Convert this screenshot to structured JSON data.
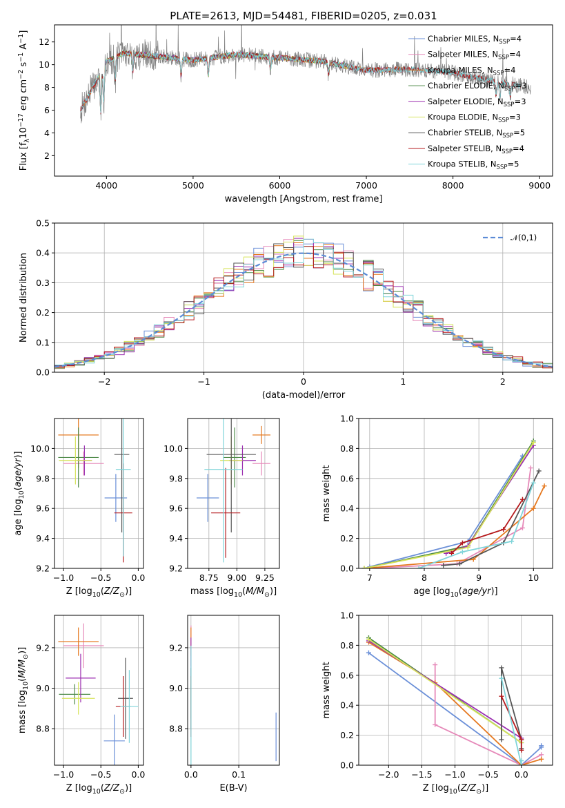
{
  "figure": {
    "title": "PLATE=2613, MJD=54481, FIBERID=0205, z=0.031",
    "colors": {
      "Chabrier MILES": "#6a8fd8",
      "Salpeter MILES": "#e689b9",
      "Kroupa MILES": "#e5781f",
      "Chabrier ELODIE": "#4d8a47",
      "Salpeter ELODIE": "#9b2fb0",
      "Kroupa ELODIE": "#d6e35a",
      "Chabrier STELIB": "#555555",
      "Salpeter STELIB": "#b5191c",
      "Kroupa STELIB": "#7fd4d9",
      "data": "#808080"
    }
  },
  "chart_data": [
    {
      "id": "spectrum",
      "type": "line",
      "xlabel": "wavelength [Angstrom, rest frame]",
      "ylabel": "Flux [f_λ10^-17 erg cm^-2 s^-1 A^-1]",
      "xlim": [
        3400,
        9150
      ],
      "ylim": [
        0.2,
        13.5
      ],
      "xticks": [
        4000,
        5000,
        6000,
        7000,
        8000,
        9000
      ],
      "yticks": [
        2,
        4,
        6,
        8,
        10,
        12
      ],
      "legend_position": "upper-right",
      "legend": [
        {
          "label": "Chabrier MILES, N",
          "sub": "SSP",
          "eq": "=4"
        },
        {
          "label": "Salpeter MILES, N",
          "sub": "SSP",
          "eq": "=4"
        },
        {
          "label": "Kroupa MILES, N",
          "sub": "SSP",
          "eq": "=4"
        },
        {
          "label": "Chabrier ELODIE, N",
          "sub": "SSP",
          "eq": "=3"
        },
        {
          "label": "Salpeter ELODIE, N",
          "sub": "SSP",
          "eq": "=3"
        },
        {
          "label": "Kroupa ELODIE, N",
          "sub": "SSP",
          "eq": "=3"
        },
        {
          "label": "Chabrier STELIB, N",
          "sub": "SSP",
          "eq": "=5"
        },
        {
          "label": "Salpeter STELIB, N",
          "sub": "SSP",
          "eq": "=4"
        },
        {
          "label": "Kroupa STELIB, N",
          "sub": "SSP",
          "eq": "=5"
        }
      ],
      "data_range": [
        3700,
        8900
      ],
      "model_ranges": {
        "MILES": [
          3700,
          7430
        ],
        "ELODIE": [
          3900,
          6800
        ],
        "STELIB": [
          3700,
          8780
        ]
      },
      "continuum": [
        [
          3700,
          6.0
        ],
        [
          3900,
          8.8
        ],
        [
          4000,
          10.3
        ],
        [
          4200,
          11.0
        ],
        [
          4500,
          10.8
        ],
        [
          5000,
          10.4
        ],
        [
          5500,
          10.9
        ],
        [
          6000,
          10.6
        ],
        [
          6500,
          10.3
        ],
        [
          7000,
          9.5
        ],
        [
          7500,
          9.6
        ],
        [
          8000,
          9.3
        ],
        [
          8500,
          8.5
        ],
        [
          8900,
          8.0
        ]
      ],
      "absorption_lines": [
        [
          3934,
          3.5
        ],
        [
          3969,
          3.0
        ],
        [
          4102,
          2.0
        ],
        [
          4304,
          1.5
        ],
        [
          4861,
          1.5
        ],
        [
          5175,
          1.5
        ],
        [
          5893,
          1.0
        ],
        [
          6563,
          1.0
        ],
        [
          8498,
          1.2
        ],
        [
          8542,
          1.5
        ],
        [
          8662,
          1.2
        ]
      ]
    },
    {
      "id": "residuals",
      "type": "histogram",
      "xlabel": "(data-model)/error",
      "ylabel": "Normed distribution",
      "xlim": [
        -2.5,
        2.5
      ],
      "ylim": [
        0,
        0.5
      ],
      "xticks": [
        -2,
        -1,
        0,
        1,
        2
      ],
      "yticks": [
        0.0,
        0.1,
        0.2,
        0.3,
        0.4,
        0.5
      ],
      "legend": "𝒩(0,1)",
      "legend_position": "upper-right",
      "bin_width": 0.1,
      "reference_curve": "normal(0,1)"
    },
    {
      "id": "age_vs_Z",
      "type": "errorbar",
      "xlabel": "Z [log10(Z/Z⊙)]",
      "ylabel": "age [log10(age/yr)]",
      "xlim": [
        -1.12,
        0.07
      ],
      "ylim": [
        9.2,
        10.2
      ],
      "xticks": [
        -1.0,
        -0.5,
        0.0
      ],
      "yticks": [
        9.2,
        9.4,
        9.6,
        9.8,
        10.0
      ],
      "points": [
        {
          "model": "Chabrier MILES",
          "x": -0.3,
          "xerr": 0.15,
          "y": 9.67,
          "yerr": 0.16
        },
        {
          "model": "Salpeter MILES",
          "x": -0.73,
          "xerr": 0.27,
          "y": 9.9,
          "yerr": 0.08
        },
        {
          "model": "Kroupa MILES",
          "x": -0.8,
          "xerr": 0.27,
          "y": 10.09,
          "yerr": 0.22
        },
        {
          "model": "Chabrier ELODIE",
          "x": -0.8,
          "xerr": 0.27,
          "y": 9.94,
          "yerr": 0.2
        },
        {
          "model": "Salpeter ELODIE",
          "x": -0.72,
          "xerr": 0.1,
          "y": 9.92,
          "yerr": 0.1
        },
        {
          "model": "Kroupa ELODIE",
          "x": -0.84,
          "xerr": 0.22,
          "y": 9.92,
          "yerr": 0.16
        },
        {
          "model": "Chabrier STELIB",
          "x": -0.22,
          "xerr": 0.1,
          "y": 9.96,
          "yerr": 0.52
        },
        {
          "model": "Salpeter STELIB",
          "x": -0.2,
          "xerr": 0.12,
          "y": 9.57,
          "yerr": 0.33
        },
        {
          "model": "Kroupa STELIB",
          "x": -0.2,
          "xerr": 0.1,
          "y": 9.86,
          "yerr": 0.58
        }
      ]
    },
    {
      "id": "age_vs_mass",
      "type": "errorbar",
      "xlabel": "mass [log10(M/M⊙)]",
      "ylabel": "",
      "xlim": [
        8.56,
        9.38
      ],
      "ylim": [
        9.2,
        10.2
      ],
      "xticks": [
        8.75,
        9.0,
        9.25
      ],
      "yticks": [
        9.2,
        9.4,
        9.6,
        9.8,
        10.0
      ],
      "points": [
        {
          "model": "Chabrier MILES",
          "x": 8.74,
          "xerr": 0.1,
          "y": 9.67,
          "yerr": 0.16
        },
        {
          "model": "Salpeter MILES",
          "x": 9.22,
          "xerr": 0.08,
          "y": 9.9,
          "yerr": 0.08
        },
        {
          "model": "Kroupa MILES",
          "x": 9.22,
          "xerr": 0.08,
          "y": 10.09,
          "yerr": 0.06
        },
        {
          "model": "Chabrier ELODIE",
          "x": 8.98,
          "xerr": 0.1,
          "y": 9.94,
          "yerr": 0.2
        },
        {
          "model": "Salpeter ELODIE",
          "x": 9.05,
          "xerr": 0.12,
          "y": 9.92,
          "yerr": 0.1
        },
        {
          "model": "Kroupa ELODIE",
          "x": 8.95,
          "xerr": 0.1,
          "y": 9.92,
          "yerr": 0.16
        },
        {
          "model": "Chabrier STELIB",
          "x": 8.95,
          "xerr": 0.22,
          "y": 9.96,
          "yerr": 0.52
        },
        {
          "model": "Salpeter STELIB",
          "x": 8.9,
          "xerr": 0.13,
          "y": 9.57,
          "yerr": 0.3
        },
        {
          "model": "Kroupa STELIB",
          "x": 8.88,
          "xerr": 0.17,
          "y": 9.86,
          "yerr": 0.62
        }
      ]
    },
    {
      "id": "mass_weight_vs_age",
      "type": "line",
      "xlabel": "age [log10(age/yr)]",
      "ylabel": "mass weight",
      "xlim": [
        6.8,
        10.35
      ],
      "ylim": [
        0,
        1.0
      ],
      "xticks": [
        7,
        8,
        9,
        10
      ],
      "yticks": [
        0.0,
        0.2,
        0.4,
        0.6,
        0.8,
        1.0
      ],
      "series": [
        {
          "model": "Chabrier MILES",
          "x": [
            7.0,
            8.8,
            9.8
          ],
          "y": [
            0.01,
            0.18,
            0.75
          ]
        },
        {
          "model": "Salpeter MILES",
          "x": [
            7.0,
            8.6,
            9.8,
            9.95
          ],
          "y": [
            0.0,
            0.03,
            0.27,
            0.67
          ]
        },
        {
          "model": "Kroupa MILES",
          "x": [
            6.9,
            8.9,
            10.0,
            10.2
          ],
          "y": [
            0.0,
            0.06,
            0.4,
            0.55
          ]
        },
        {
          "model": "Chabrier ELODIE",
          "x": [
            6.9,
            8.8,
            10.0
          ],
          "y": [
            0.0,
            0.15,
            0.85
          ]
        },
        {
          "model": "Salpeter ELODIE",
          "x": [
            8.4,
            8.8,
            10.0
          ],
          "y": [
            0.1,
            0.15,
            0.82
          ]
        },
        {
          "model": "Kroupa ELODIE",
          "x": [
            6.9,
            8.8,
            10.0
          ],
          "y": [
            0.0,
            0.14,
            0.84
          ]
        },
        {
          "model": "Chabrier STELIB",
          "x": [
            8.35,
            8.65,
            9.45,
            10.1
          ],
          "y": [
            0.02,
            0.03,
            0.17,
            0.65
          ]
        },
        {
          "model": "Salpeter STELIB",
          "x": [
            8.5,
            8.7,
            9.45,
            9.8
          ],
          "y": [
            0.1,
            0.17,
            0.26,
            0.46
          ]
        },
        {
          "model": "Kroupa STELIB",
          "x": [
            7.9,
            8.7,
            9.6,
            10.0
          ],
          "y": [
            0.0,
            0.11,
            0.18,
            0.57
          ]
        }
      ]
    },
    {
      "id": "mass_vs_Z",
      "type": "errorbar",
      "xlabel": "Z [log10(Z/Z⊙)]",
      "ylabel": "mass [log10(M/M⊙)]",
      "xlim": [
        -1.12,
        0.07
      ],
      "ylim": [
        8.62,
        9.36
      ],
      "xticks": [
        -1.0,
        -0.5,
        0.0
      ],
      "yticks": [
        8.8,
        9.0,
        9.2
      ],
      "points": [
        {
          "model": "Chabrier MILES",
          "x": -0.32,
          "xerr": 0.14,
          "y": 8.74,
          "yerr": 0.13
        },
        {
          "model": "Salpeter MILES",
          "x": -0.73,
          "xerr": 0.27,
          "y": 9.21,
          "yerr": 0.11
        },
        {
          "model": "Kroupa MILES",
          "x": -0.8,
          "xerr": 0.27,
          "y": 9.23,
          "yerr": 0.07
        },
        {
          "model": "Chabrier ELODIE",
          "x": -0.85,
          "xerr": 0.21,
          "y": 8.97,
          "yerr": 0.05
        },
        {
          "model": "Salpeter ELODIE",
          "x": -0.77,
          "xerr": 0.2,
          "y": 9.05,
          "yerr": 0.12
        },
        {
          "model": "Kroupa ELODIE",
          "x": -0.8,
          "xerr": 0.22,
          "y": 8.95,
          "yerr": 0.08
        },
        {
          "model": "Chabrier STELIB",
          "x": -0.17,
          "xerr": 0.1,
          "y": 8.95,
          "yerr": 0.2
        },
        {
          "model": "Salpeter STELIB",
          "x": -0.2,
          "xerr": 0.1,
          "y": 8.91,
          "yerr": 0.15
        },
        {
          "model": "Kroupa STELIB",
          "x": -0.12,
          "xerr": 0.12,
          "y": 8.91,
          "yerr": 0.18
        }
      ]
    },
    {
      "id": "mass_vs_EBV",
      "type": "errorbar",
      "xlabel": "E(B-V)",
      "ylabel": "",
      "xlim": [
        -0.007,
        0.185
      ],
      "ylim": [
        8.62,
        9.36
      ],
      "xticks": [
        0.0,
        0.1
      ],
      "yticks": [
        8.8,
        9.0,
        9.2
      ],
      "points": [
        {
          "model": "Chabrier MILES",
          "x": 0.178,
          "xerr": 0,
          "y": 8.76,
          "yerr": 0.12
        },
        {
          "model": "Salpeter MILES",
          "x": 0.0,
          "xerr": 0,
          "y": 9.21,
          "yerr": 0.1
        },
        {
          "model": "Kroupa MILES",
          "x": 0.0,
          "xerr": 0,
          "y": 9.23,
          "yerr": 0.07
        },
        {
          "model": "Chabrier ELODIE",
          "x": 0.0,
          "xerr": 0,
          "y": 8.97,
          "yerr": 0.05
        },
        {
          "model": "Salpeter ELODIE",
          "x": 0.0,
          "xerr": 0,
          "y": 9.05,
          "yerr": 0.2
        },
        {
          "model": "Kroupa ELODIE",
          "x": 0.0,
          "xerr": 0,
          "y": 8.95,
          "yerr": 0.1
        },
        {
          "model": "Chabrier STELIB",
          "x": 0.0,
          "xerr": 0,
          "y": 8.95,
          "yerr": 0.15
        },
        {
          "model": "Salpeter STELIB",
          "x": 0.0,
          "xerr": 0,
          "y": 8.91,
          "yerr": 0.15
        },
        {
          "model": "Kroupa STELIB",
          "x": 0.0,
          "xerr": 0,
          "y": 8.91,
          "yerr": 0.3
        }
      ]
    },
    {
      "id": "mass_weight_vs_Z",
      "type": "line",
      "xlabel": "Z [log10(Z/Z⊙)]",
      "ylabel": "mass weight",
      "xlim": [
        -2.45,
        0.47
      ],
      "ylim": [
        0,
        1.0
      ],
      "xticks": [
        -2.0,
        -1.5,
        -1.0,
        -0.5,
        0.0
      ],
      "yticks": [
        0.0,
        0.2,
        0.4,
        0.6,
        0.8,
        1.0
      ],
      "series": [
        {
          "model": "Chabrier MILES",
          "x": [
            -2.3,
            0.0,
            0.0,
            0.3,
            0.3
          ],
          "y": [
            0.75,
            0.0,
            0.0,
            0.12,
            0.13
          ]
        },
        {
          "model": "Salpeter MILES",
          "x": [
            -1.3,
            -1.3,
            0.0,
            0.3
          ],
          "y": [
            0.67,
            0.27,
            0.0,
            0.07
          ]
        },
        {
          "model": "Kroupa MILES",
          "x": [
            -2.3,
            -1.3,
            0.0,
            0.3
          ],
          "y": [
            0.82,
            0.55,
            0.0,
            0.04
          ]
        },
        {
          "model": "Chabrier ELODIE",
          "x": [
            -2.3,
            0.0
          ],
          "y": [
            0.85,
            0.15
          ]
        },
        {
          "model": "Salpeter ELODIE",
          "x": [
            -2.3,
            0.0
          ],
          "y": [
            0.83,
            0.18
          ]
        },
        {
          "model": "Kroupa ELODIE",
          "x": [
            -2.3,
            0.0
          ],
          "y": [
            0.84,
            0.15
          ]
        },
        {
          "model": "Chabrier STELIB",
          "x": [
            -0.3,
            -0.3,
            0.0,
            0.0
          ],
          "y": [
            0.17,
            0.65,
            0.17,
            0.11
          ]
        },
        {
          "model": "Salpeter STELIB",
          "x": [
            -0.3,
            0.0,
            0.0
          ],
          "y": [
            0.46,
            0.17,
            0.1
          ]
        },
        {
          "model": "Kroupa STELIB",
          "x": [
            -0.3,
            0.0,
            0.0
          ],
          "y": [
            0.58,
            0.0,
            0.03
          ]
        }
      ]
    }
  ]
}
